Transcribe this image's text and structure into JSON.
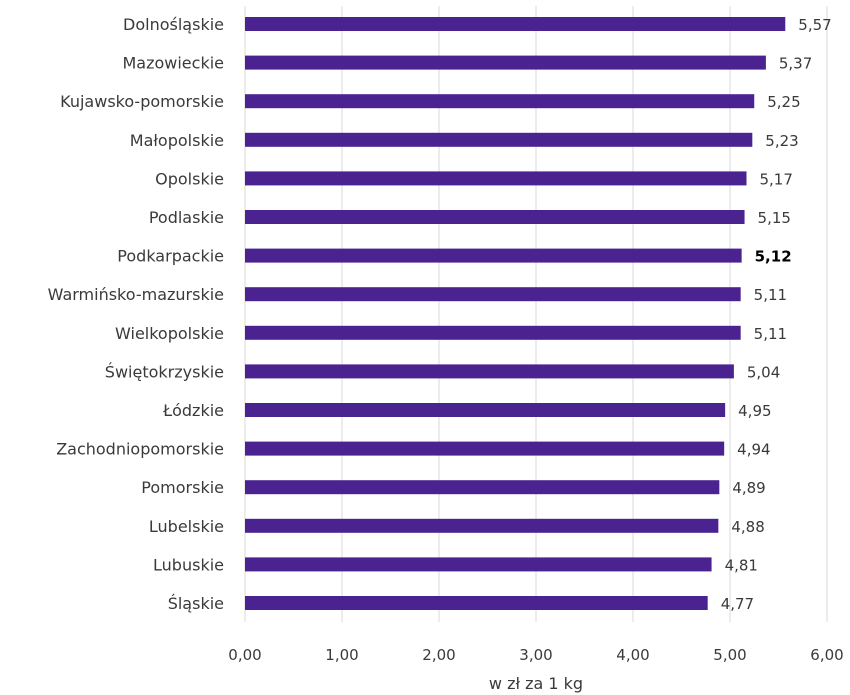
{
  "chart_data": {
    "type": "bar",
    "orientation": "horizontal",
    "categories": [
      "Dolnośląskie",
      "Mazowieckie",
      "Kujawsko-pomorskie",
      "Małopolskie",
      "Opolskie",
      "Podlaskie",
      "Podkarpackie",
      "Warmińsko-mazurskie",
      "Wielkopolskie",
      "Świętokrzyskie",
      "Łódzkie",
      "Zachodniopomorskie",
      "Pomorskie",
      "Lubelskie",
      "Lubuskie",
      "Śląskie"
    ],
    "values": [
      5.57,
      5.37,
      5.25,
      5.23,
      5.17,
      5.15,
      5.12,
      5.11,
      5.11,
      5.04,
      4.95,
      4.94,
      4.89,
      4.88,
      4.81,
      4.77
    ],
    "value_labels": [
      "5,57",
      "5,37",
      "5,25",
      "5,23",
      "5,17",
      "5,15",
      "5,12",
      "5,11",
      "5,11",
      "5,04",
      "4,95",
      "4,94",
      "4,89",
      "4,88",
      "4,81",
      "4,77"
    ],
    "highlight_category": "Podkarpackie",
    "xlabel": "w zł za 1 kg",
    "xlim": [
      0,
      6
    ],
    "xticks": [
      0,
      1,
      2,
      3,
      4,
      5,
      6
    ],
    "xtick_labels": [
      "0,00",
      "1,00",
      "2,00",
      "3,00",
      "4,00",
      "5,00",
      "6,00"
    ],
    "grid": "vertical",
    "bar_color": "#4b2391"
  }
}
